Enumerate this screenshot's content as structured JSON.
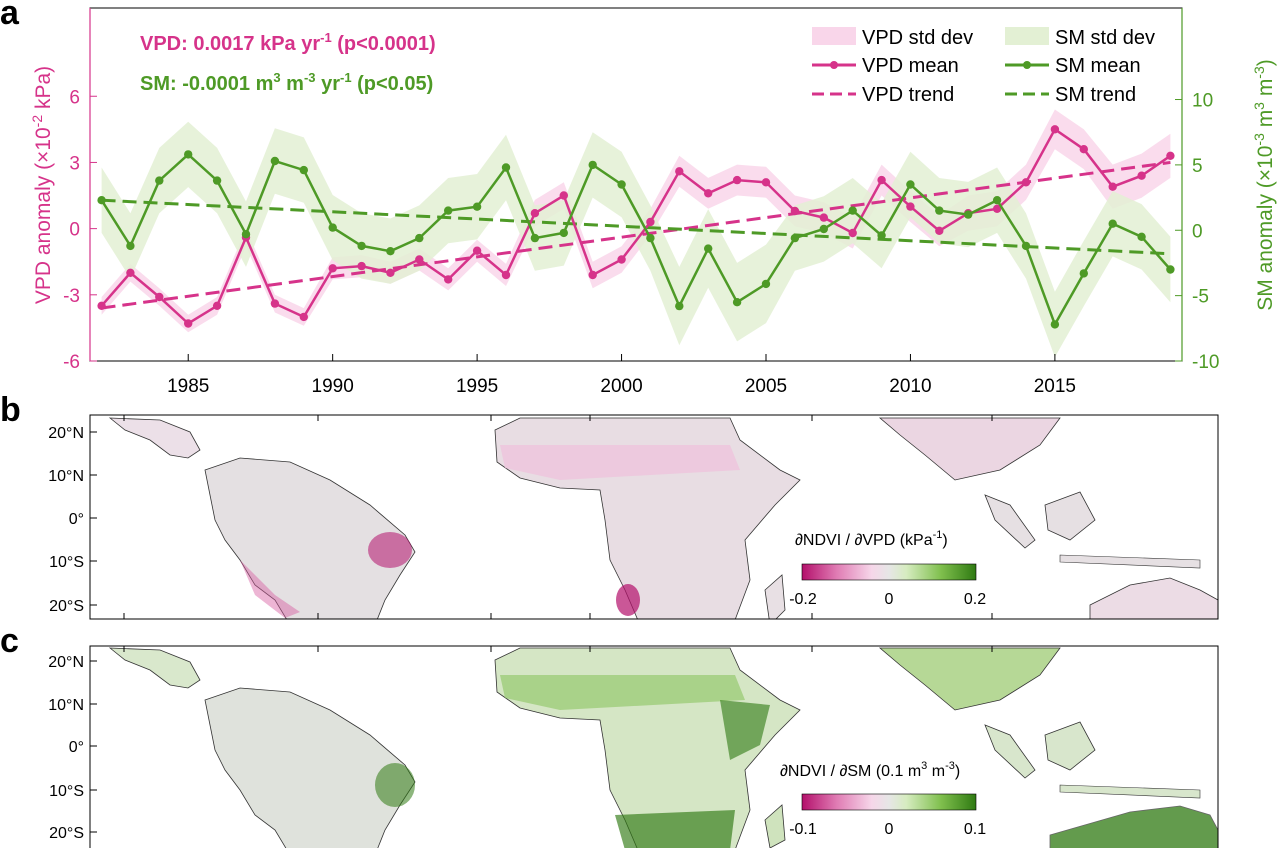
{
  "chart_data": [
    {
      "panel": "a",
      "type": "line",
      "annotations": {
        "vpd_text": "VPD: 0.0017 kPa yr",
        "vpd_sup": "-1",
        "vpd_p": " (p<0.0001)",
        "sm_text_1": "SM: -0.0001 m",
        "sm_sup_1": "3",
        "sm_text_2": " m",
        "sm_sup_2": "-3",
        "sm_text_3": " yr",
        "sm_sup_3": "-1",
        "sm_p": " (p<0.05)"
      },
      "ylabel_left": {
        "pre": "VPD anomaly (×10",
        "sup": "-2",
        "post": " kPa)"
      },
      "ylabel_right": {
        "pre": "SM anomaly (×10",
        "sup1": "-3",
        "mid1": " m",
        "sup2": "3",
        "mid2": " m",
        "sup3": "-3",
        "post": ")"
      },
      "x": [
        1982,
        1983,
        1984,
        1985,
        1986,
        1987,
        1988,
        1989,
        1990,
        1991,
        1992,
        1993,
        1994,
        1995,
        1996,
        1997,
        1998,
        1999,
        2000,
        2001,
        2002,
        2003,
        2004,
        2005,
        2006,
        2007,
        2008,
        2009,
        2010,
        2011,
        2012,
        2013,
        2014,
        2015,
        2016,
        2017,
        2018,
        2019
      ],
      "xticks": [
        1985,
        1990,
        1995,
        2000,
        2005,
        2010,
        2015
      ],
      "xlim": [
        1981.6,
        2019.4
      ],
      "ylim_left": [
        -6,
        10
      ],
      "yticks_left": [
        -6,
        -3,
        0,
        3,
        6
      ],
      "ylim_right": [
        -10,
        17
      ],
      "yticks_right": [
        -10,
        -5,
        0,
        5,
        10
      ],
      "series": [
        {
          "name": "VPD mean",
          "axis": "left",
          "values": [
            -3.5,
            -2.0,
            -3.1,
            -4.3,
            -3.5,
            -0.4,
            -3.4,
            -4.0,
            -1.8,
            -1.7,
            -2.0,
            -1.4,
            -2.3,
            -1.0,
            -2.1,
            0.7,
            1.5,
            -2.1,
            -1.4,
            0.3,
            2.6,
            1.6,
            2.2,
            2.1,
            0.8,
            0.5,
            -0.2,
            2.2,
            1.0,
            -0.1,
            0.7,
            0.9,
            2.1,
            4.5,
            3.6,
            1.9,
            2.4,
            3.3
          ],
          "std": [
            0.4,
            0.4,
            0.4,
            0.4,
            0.4,
            0.4,
            0.4,
            0.4,
            0.5,
            0.5,
            0.5,
            0.5,
            0.5,
            0.5,
            0.5,
            0.6,
            0.6,
            0.6,
            0.6,
            0.6,
            0.7,
            0.7,
            0.7,
            0.7,
            0.7,
            0.7,
            0.7,
            0.7,
            0.7,
            0.7,
            0.8,
            0.8,
            0.8,
            0.9,
            0.9,
            1.0,
            1.0,
            1.0
          ]
        },
        {
          "name": "SM mean",
          "axis": "right",
          "values": [
            2.3,
            -1.2,
            3.8,
            5.8,
            3.8,
            -0.3,
            5.3,
            4.6,
            0.2,
            -1.2,
            -1.6,
            -0.6,
            1.5,
            1.8,
            4.8,
            -0.6,
            -0.2,
            5.0,
            3.5,
            -0.6,
            -5.8,
            -1.4,
            -5.5,
            -4.1,
            -0.6,
            0.1,
            1.5,
            -0.4,
            3.5,
            1.5,
            1.2,
            2.3,
            -1.2,
            -7.2,
            -3.3,
            0.5,
            -0.5,
            -3.0
          ],
          "std": [
            2.5,
            2.5,
            2.5,
            2.5,
            2.5,
            2.5,
            2.5,
            2.5,
            2.5,
            2.5,
            2.5,
            2.5,
            2.5,
            2.5,
            2.5,
            2.5,
            2.5,
            2.5,
            2.5,
            2.5,
            3.0,
            3.0,
            3.0,
            3.0,
            2.5,
            2.5,
            2.5,
            2.5,
            2.5,
            2.5,
            2.5,
            2.5,
            2.5,
            2.5,
            2.5,
            2.5,
            2.5,
            2.5
          ]
        }
      ],
      "trends": [
        {
          "name": "VPD trend",
          "axis": "left",
          "x": [
            1982,
            2019
          ],
          "y": [
            -3.6,
            3.0
          ]
        },
        {
          "name": "SM trend",
          "axis": "right",
          "x": [
            1982,
            2019
          ],
          "y": [
            2.3,
            -1.8
          ]
        }
      ],
      "legend": [
        {
          "label": "VPD std dev",
          "kind": "patch",
          "color": "#f9d6ea"
        },
        {
          "label": "SM std dev",
          "kind": "patch",
          "color": "#e3f0d4"
        },
        {
          "label": "VPD mean",
          "kind": "line-marker",
          "color": "#d6338a"
        },
        {
          "label": "SM mean",
          "kind": "line-marker",
          "color": "#4e9a26"
        },
        {
          "label": "VPD trend",
          "kind": "dashed",
          "color": "#d6338a"
        },
        {
          "label": "SM trend",
          "kind": "dashed",
          "color": "#4e9a26"
        }
      ],
      "legend_placement": "top-right",
      "colors": {
        "vpd": "#d6338a",
        "sm": "#4e9a26",
        "vpd_band": "#f9d6ea",
        "sm_band": "#e3f0d4"
      }
    },
    {
      "panel": "b",
      "type": "heatmap",
      "lat_ticks": [
        "20°N",
        "10°N",
        "0°",
        "10°S",
        "20°S"
      ],
      "colorbar_label": {
        "pre": "∂NDVI / ∂VPD (kPa",
        "sup": "-1",
        "post": ")"
      },
      "colorbar_ticks": [
        "-0.2",
        "0",
        "0.2"
      ],
      "colormap": [
        "#b3106b",
        "#e07cb4",
        "#f6d6e9",
        "#e6e6e6",
        "#d6ecc0",
        "#7fbf4d",
        "#2f7a12"
      ]
    },
    {
      "panel": "c",
      "type": "heatmap",
      "lat_ticks": [
        "20°N",
        "10°N",
        "0°",
        "10°S",
        "20°S"
      ],
      "colorbar_label": {
        "pre": "∂NDVI / ∂SM (0.1 m",
        "sup1": "3",
        "mid": " m",
        "sup2": "-3",
        "post": ")"
      },
      "colorbar_ticks": [
        "-0.1",
        "0",
        "0.1"
      ],
      "colormap": [
        "#b3106b",
        "#e07cb4",
        "#f6d6e9",
        "#e6e6e6",
        "#d6ecc0",
        "#7fbf4d",
        "#2f7a12"
      ]
    }
  ],
  "panel_letters": [
    "a",
    "b",
    "c"
  ]
}
